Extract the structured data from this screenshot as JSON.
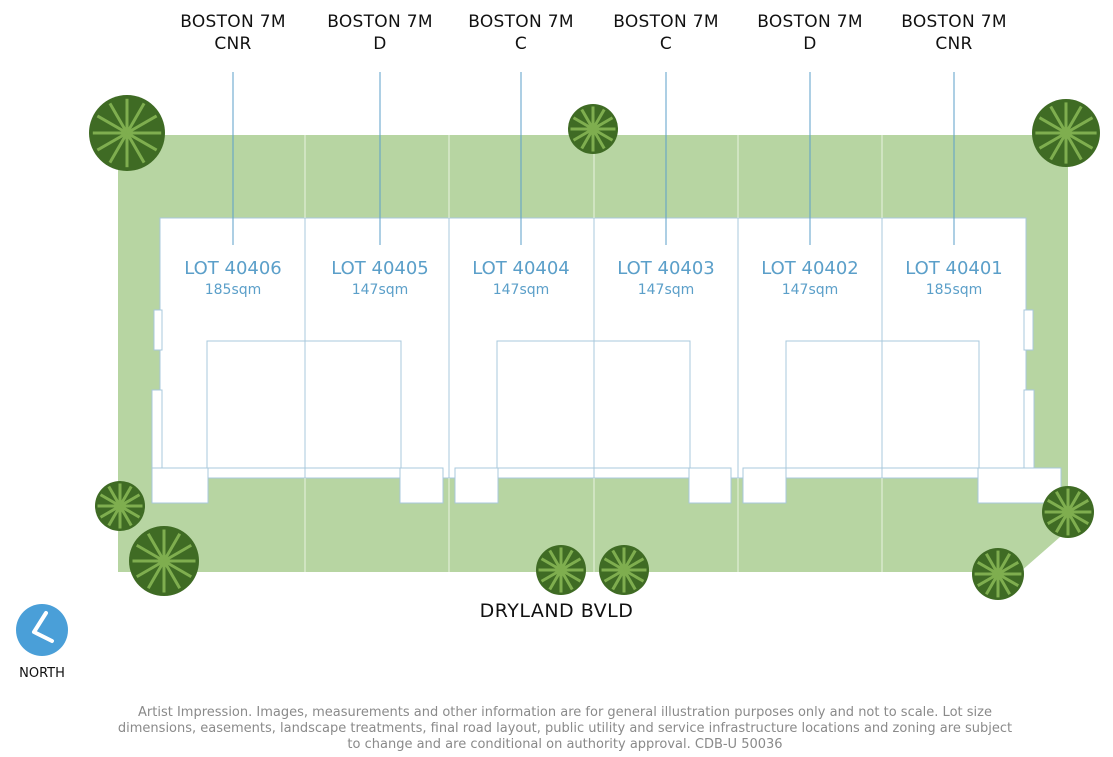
{
  "lots": [
    {
      "house_line1": "BOSTON 7M",
      "house_line2": "CNR",
      "lot": "LOT 40406",
      "size": "185sqm"
    },
    {
      "house_line1": "BOSTON 7M",
      "house_line2": "D",
      "lot": "LOT 40405",
      "size": "147sqm"
    },
    {
      "house_line1": "BOSTON 7M",
      "house_line2": "C",
      "lot": "LOT 40404",
      "size": "147sqm"
    },
    {
      "house_line1": "BOSTON 7M",
      "house_line2": "C",
      "lot": "LOT 40403",
      "size": "147sqm"
    },
    {
      "house_line1": "BOSTON 7M",
      "house_line2": "D",
      "lot": "LOT 40402",
      "size": "147sqm"
    },
    {
      "house_line1": "BOSTON 7M",
      "house_line2": "CNR",
      "lot": "LOT 40401",
      "size": "185sqm"
    }
  ],
  "road_name": "DRYLAND BVLD",
  "north_label": "NORTH",
  "disclaimer": "Artist Impression. Images, measurements and other information are for general illustration purposes only and not to scale. Lot size dimensions, easements, landscape treatments, final road layout, public utility and service infrastructure locations and zoning are subject to change and are conditional on authority approval. CDB-U 50036",
  "colors": {
    "grass": "#b7d5a2",
    "lot_text": "#5b9fc9",
    "north_badge": "#4a9fd8",
    "tree": "#3f6b24"
  }
}
